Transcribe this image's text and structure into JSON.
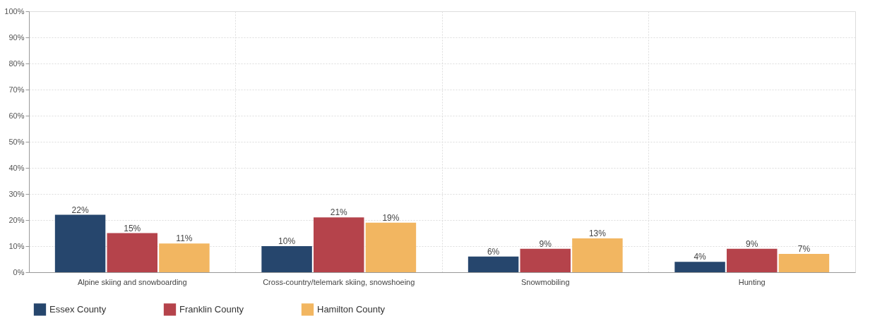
{
  "chart_data": {
    "type": "bar",
    "categories": [
      "Alpine skiing and snowboarding",
      "Cross-country/telemark skiing, snowshoeing",
      "Snowmobiling",
      "Hunting"
    ],
    "series": [
      {
        "name": "Essex County",
        "color": "#26466d",
        "values": [
          22,
          10,
          6,
          4
        ],
        "value_labels": [
          "22%",
          "10%",
          "6%",
          "4%"
        ]
      },
      {
        "name": "Franklin County",
        "color": "#b5434b",
        "values": [
          15,
          21,
          9,
          9
        ],
        "value_labels": [
          "15%",
          "21%",
          "9%",
          "9%"
        ]
      },
      {
        "name": "Hamilton County",
        "color": "#f2b661",
        "values": [
          11,
          19,
          13,
          7
        ],
        "value_labels": [
          "11%",
          "19%",
          "13%",
          "7%"
        ]
      }
    ],
    "ylim": [
      0,
      100
    ],
    "yticks": [
      {
        "value": 0,
        "label": "0%"
      },
      {
        "value": 10,
        "label": "10%"
      },
      {
        "value": 20,
        "label": "20%"
      },
      {
        "value": 30,
        "label": "30%"
      },
      {
        "value": 40,
        "label": "40%"
      },
      {
        "value": 50,
        "label": "50%"
      },
      {
        "value": 60,
        "label": "60%"
      },
      {
        "value": 70,
        "label": "70%"
      },
      {
        "value": 80,
        "label": "80%"
      },
      {
        "value": 90,
        "label": "90%"
      },
      {
        "value": 100,
        "label": "100%"
      }
    ],
    "grid": true,
    "legend": "bottom"
  }
}
